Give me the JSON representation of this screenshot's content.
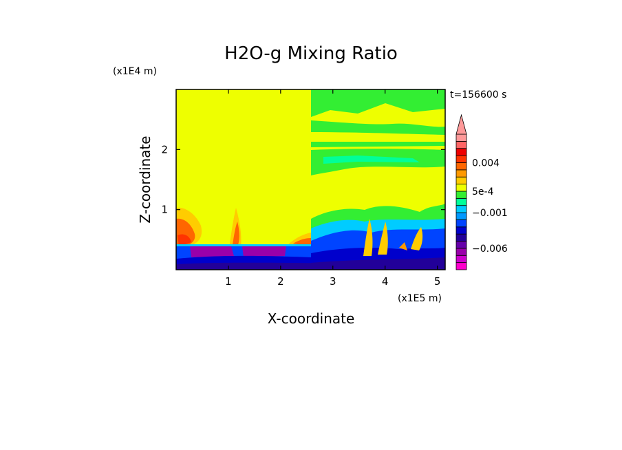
{
  "chart_data": {
    "type": "heatmap",
    "title": "H2O-g Mixing Ratio",
    "xlabel": "X-coordinate",
    "ylabel": "Z-coordinate",
    "x_scale_label": "(x1E5 m)",
    "y_scale_label": "(x1E4 m)",
    "time_label": "t=156600 s",
    "xlim": [
      0,
      5.15
    ],
    "ylim": [
      0,
      3.0
    ],
    "x_ticks": [
      1,
      2,
      3,
      4,
      5
    ],
    "x_tick_labels": [
      "1",
      "2",
      "3",
      "4",
      "5"
    ],
    "y_ticks": [
      1,
      2
    ],
    "y_tick_labels": [
      "1",
      "2"
    ],
    "colorbar": {
      "levels": [
        -0.009,
        -0.008,
        -0.007,
        -0.006,
        -0.005,
        -0.004,
        -0.003,
        -0.002,
        -0.001,
        -0.0005,
        0,
        0.0005,
        0.001,
        0.002,
        0.003,
        0.004,
        0.005,
        0.006,
        0.007
      ],
      "colors": [
        "#ff00cc",
        "#cc00cc",
        "#9900aa",
        "#6600aa",
        "#220099",
        "#0000cc",
        "#0044ff",
        "#0099ff",
        "#00ccff",
        "#00ff99",
        "#33ee33",
        "#eeff00",
        "#ffcc00",
        "#ff9900",
        "#ff6600",
        "#ff3300",
        "#ee0000",
        "#ff6666",
        "#ff9999"
      ],
      "labels": [
        {
          "value": 0.004,
          "text": "0.004"
        },
        {
          "value": 0.0005,
          "text": "5e-4"
        },
        {
          "value": -0.001,
          "text": "−0.001"
        },
        {
          "value": -0.006,
          "text": "−0.006"
        }
      ]
    }
  }
}
